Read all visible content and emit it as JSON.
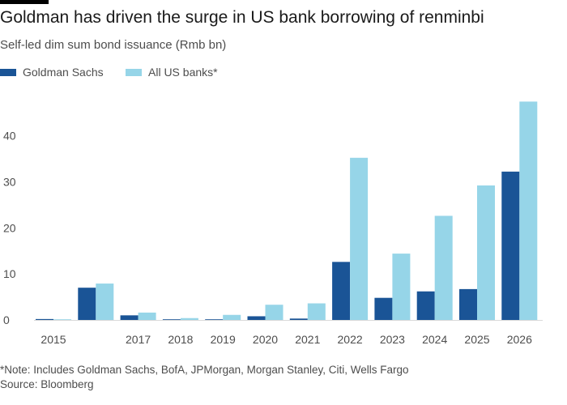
{
  "chart_data": {
    "type": "bar",
    "title": "Goldman has driven the surge in US bank borrowing of renminbi",
    "subtitle": "Self-led dim sum bond issuance (Rmb bn)",
    "xlabel": "",
    "ylabel": "",
    "categories": [
      "2015",
      "",
      "2017",
      "2018",
      "2019",
      "2020",
      "2021",
      "2022",
      "2023",
      "2024",
      "2025",
      "2026"
    ],
    "series": [
      {
        "name": "Goldman Sachs",
        "color": "#1a5496",
        "values": [
          0.2,
          7.0,
          1.0,
          0.1,
          0.1,
          0.8,
          0.3,
          12.6,
          4.8,
          6.2,
          6.7,
          32.2
        ]
      },
      {
        "name": "All US banks*",
        "color": "#96d5e8",
        "values": [
          0.1,
          7.9,
          1.6,
          0.4,
          1.1,
          3.3,
          3.6,
          35.2,
          14.4,
          22.6,
          29.2,
          47.4
        ]
      }
    ],
    "ylim": [
      0,
      48
    ],
    "yticks": [
      0,
      10,
      20,
      30,
      40
    ],
    "grid": false,
    "legend": "top-left"
  },
  "footnote": "*Note: Includes Goldman Sachs, BofA, JPMorgan, Morgan Stanley, Citi, Wells Fargo",
  "source": "Source: Bloomberg"
}
